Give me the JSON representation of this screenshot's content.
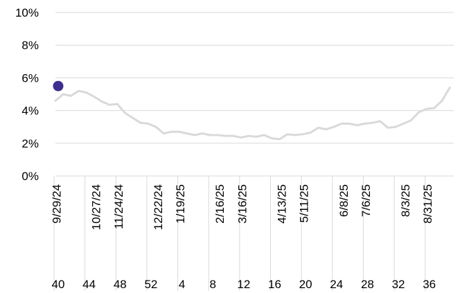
{
  "chart_data": {
    "type": "line",
    "x_date_labels": [
      "9/29/24",
      "10/27/24",
      "11/24/24",
      "12/22/24",
      "1/19/25",
      "2/16/25",
      "3/16/25",
      "4/13/25",
      "5/11/25",
      "6/8/25",
      "7/6/25",
      "8/3/25",
      "8/31/25"
    ],
    "x_week_labels": [
      "40",
      "44",
      "48",
      "52",
      "4",
      "8",
      "12",
      "16",
      "20",
      "24",
      "28",
      "32",
      "36"
    ],
    "y_ticks": [
      "0%",
      "2%",
      "4%",
      "6%",
      "8%",
      "10%"
    ],
    "ylim": [
      0,
      10
    ],
    "grid": true,
    "series": [
      {
        "color": "#d9d9d9",
        "x": [
          "9/29/24",
          "10/6/24",
          "10/13/24",
          "10/20/24",
          "10/27/24",
          "11/3/24",
          "11/10/24",
          "11/17/24",
          "11/24/24",
          "12/1/24",
          "12/8/24",
          "12/15/24",
          "12/22/24",
          "12/29/24",
          "1/5/25",
          "1/12/25",
          "1/19/25",
          "1/26/25",
          "2/2/25",
          "2/9/25",
          "2/16/25",
          "2/23/25",
          "3/2/25",
          "3/9/25",
          "3/16/25",
          "3/23/25",
          "3/30/25",
          "4/6/25",
          "4/13/25",
          "4/20/25",
          "4/27/25",
          "5/4/25",
          "5/11/25",
          "5/18/25",
          "5/25/25",
          "6/1/25",
          "6/8/25",
          "6/15/25",
          "6/22/25",
          "6/29/25",
          "7/6/25",
          "7/13/25",
          "7/20/25",
          "7/27/25",
          "8/3/25",
          "8/10/25",
          "8/17/25",
          "8/24/25",
          "8/31/25",
          "9/7/25",
          "9/14/25",
          "9/21/25"
        ],
        "values": [
          4.6,
          5.0,
          4.9,
          5.2,
          5.1,
          4.85,
          4.55,
          4.35,
          4.4,
          3.85,
          3.55,
          3.25,
          3.2,
          3.0,
          2.6,
          2.7,
          2.7,
          2.6,
          2.5,
          2.6,
          2.5,
          2.5,
          2.45,
          2.45,
          2.35,
          2.45,
          2.4,
          2.5,
          2.3,
          2.25,
          2.55,
          2.5,
          2.55,
          2.65,
          2.95,
          2.85,
          3.0,
          3.2,
          3.2,
          3.1,
          3.2,
          3.25,
          3.35,
          2.95,
          3.0,
          3.2,
          3.4,
          3.9,
          4.1,
          4.15,
          4.6,
          5.4
        ]
      },
      {
        "color": "#3d2f8f",
        "x": [
          "9/29/24"
        ],
        "values": [
          5.5
        ]
      }
    ]
  }
}
